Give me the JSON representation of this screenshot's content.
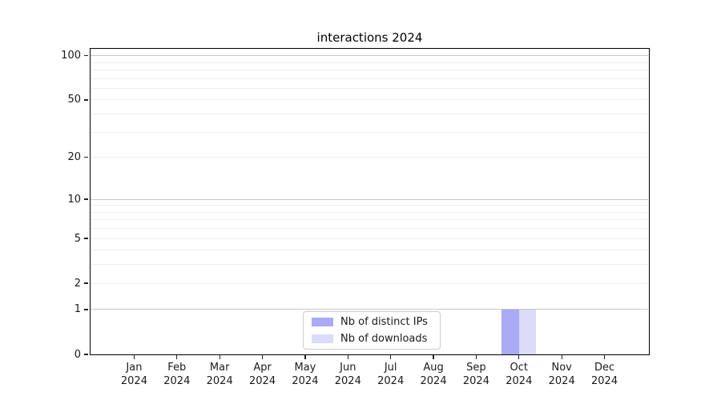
{
  "chart_data": {
    "type": "bar",
    "title": "interactions 2024",
    "categories": [
      {
        "month": "Jan",
        "year": "2024"
      },
      {
        "month": "Feb",
        "year": "2024"
      },
      {
        "month": "Mar",
        "year": "2024"
      },
      {
        "month": "Apr",
        "year": "2024"
      },
      {
        "month": "May",
        "year": "2024"
      },
      {
        "month": "Jun",
        "year": "2024"
      },
      {
        "month": "Jul",
        "year": "2024"
      },
      {
        "month": "Aug",
        "year": "2024"
      },
      {
        "month": "Sep",
        "year": "2024"
      },
      {
        "month": "Oct",
        "year": "2024"
      },
      {
        "month": "Nov",
        "year": "2024"
      },
      {
        "month": "Dec",
        "year": "2024"
      }
    ],
    "series": [
      {
        "name": "Nb of distinct IPs",
        "color": "#aaaaf7",
        "values": [
          0,
          0,
          0,
          0,
          0,
          0,
          0,
          0,
          0,
          1,
          0,
          0
        ]
      },
      {
        "name": "Nb of downloads",
        "color": "#dbdbf9",
        "values": [
          0,
          0,
          0,
          0,
          0,
          0,
          0,
          0,
          0,
          1,
          0,
          0
        ]
      }
    ],
    "y_axis": {
      "scale": "log1p",
      "ticks": [
        0,
        1,
        2,
        5,
        10,
        20,
        50,
        100
      ],
      "major_gridlines": [
        1,
        10,
        100
      ],
      "minor_gridlines": [
        2,
        3,
        4,
        5,
        6,
        7,
        8,
        9,
        20,
        30,
        40,
        50,
        60,
        70,
        80,
        90
      ],
      "lim": [
        0,
        100
      ]
    },
    "x_axis": {
      "lim_note": "12 month categories, Jan-Dec 2024"
    },
    "legend": {
      "position": "bottom-center inside plot"
    },
    "grid": true
  },
  "colors": {
    "bar_distinct_ips": "#aaaaf7",
    "bar_downloads": "#dbdbf9",
    "major_grid": "#c7c7c7",
    "minor_grid": "#ededed",
    "spine": "#000000",
    "text": "#1a1a1a",
    "legend_border": "#cccccc",
    "background": "#ffffff"
  }
}
